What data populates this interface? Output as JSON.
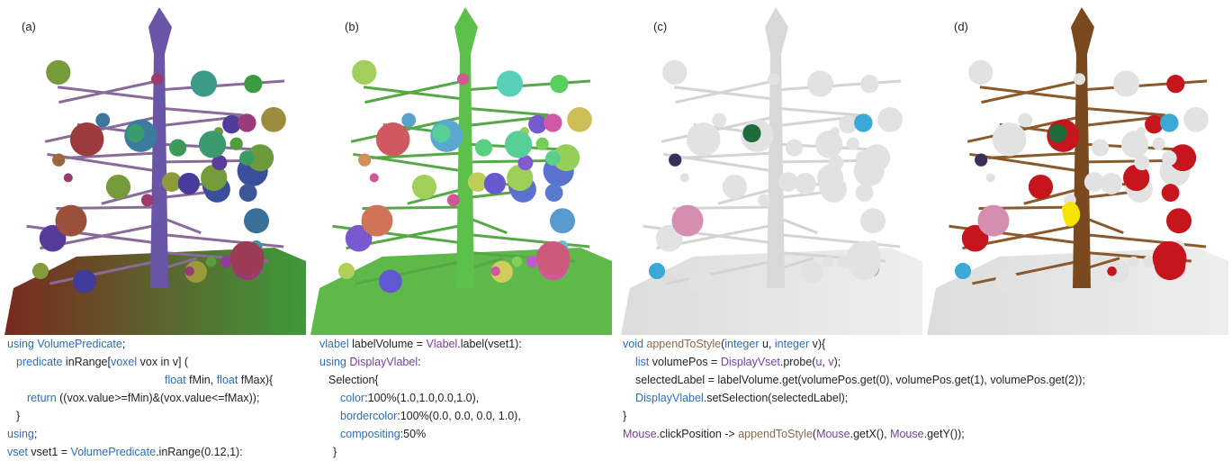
{
  "figure": {
    "panels": [
      {
        "label": "(a)",
        "code": [
          [
            {
              "text": "using VolumePredicate",
              "color": "#2e6db4"
            },
            {
              "text": ";",
              "color": "#231f20"
            }
          ],
          [
            {
              "text": "predicate",
              "color": "#2e6db4"
            },
            {
              "text": " inRange[",
              "color": "#231f20"
            },
            {
              "text": "voxel",
              "color": "#2e6db4"
            },
            {
              "text": " vox in v] (",
              "color": "#231f20"
            }
          ],
          [
            {
              "text": "float",
              "color": "#2e6db4"
            },
            {
              "text": " fMin, ",
              "color": "#231f20"
            },
            {
              "text": "float",
              "color": "#2e6db4"
            },
            {
              "text": " fMax){",
              "color": "#231f20"
            }
          ],
          [
            {
              "text": "return",
              "color": "#2e6db4"
            },
            {
              "text": " ((vox.value>=fMin)&(vox.value<=fMax));",
              "color": "#231f20"
            }
          ],
          [
            {
              "text": "}",
              "color": "#231f20"
            }
          ],
          [
            {
              "text": "using",
              "color": "#2e6db4"
            },
            {
              "text": ";",
              "color": "#231f20"
            }
          ],
          [
            {
              "text": "vset",
              "color": "#2e6db4"
            },
            {
              "text": " vset1 = ",
              "color": "#231f20"
            },
            {
              "text": "VolumePredicate",
              "color": "#2e6db4"
            },
            {
              "text": ".inRange(0.12,1):",
              "color": "#231f20"
            }
          ]
        ]
      },
      {
        "label": "(b)",
        "code": [
          [
            {
              "text": "vlabel",
              "color": "#2e6db4"
            },
            {
              "text": " labelVolume = ",
              "color": "#231f20"
            },
            {
              "text": "Vlabel",
              "color": "#7a3f9d"
            },
            {
              "text": ".label(vset1):",
              "color": "#231f20"
            }
          ],
          [
            {
              "text": "using ",
              "color": "#2e6db4"
            },
            {
              "text": "DisplayVlabel",
              "color": "#7a3f9d"
            },
            {
              "text": ":",
              "color": "#231f20"
            }
          ],
          [
            {
              "text": "Selection{",
              "color": "#231f20"
            }
          ],
          [
            {
              "text": "color",
              "color": "#2e6db4"
            },
            {
              "text": ":100%(1.0,1.0,0.0,1.0),",
              "color": "#231f20"
            }
          ],
          [
            {
              "text": "bordercolor",
              "color": "#2e6db4"
            },
            {
              "text": ":100%(0.0, 0.0, 0.0, 1.0),",
              "color": "#231f20"
            }
          ],
          [
            {
              "text": "compositing",
              "color": "#2e6db4"
            },
            {
              "text": ":50%",
              "color": "#231f20"
            }
          ],
          [
            {
              "text": "}",
              "color": "#231f20"
            }
          ]
        ]
      },
      {
        "label": "(c)"
      },
      {
        "label": "(d)"
      }
    ],
    "shared_code": [
      [
        {
          "text": "void ",
          "color": "#2e6db4"
        },
        {
          "text": "appendToStyle",
          "color": "#8a6a4a"
        },
        {
          "text": "(",
          "color": "#231f20"
        },
        {
          "text": "integer",
          "color": "#2e6db4"
        },
        {
          "text": " u, ",
          "color": "#231f20"
        },
        {
          "text": "integer",
          "color": "#2e6db4"
        },
        {
          "text": " v){",
          "color": "#231f20"
        }
      ],
      [
        {
          "text": "list",
          "color": "#2e6db4"
        },
        {
          "text": " volumePos = ",
          "color": "#231f20"
        },
        {
          "text": "DisplayVset",
          "color": "#7a3f9d"
        },
        {
          "text": ".probe(",
          "color": "#231f20"
        },
        {
          "text": "u",
          "color": "#7a3f9d"
        },
        {
          "text": ", ",
          "color": "#231f20"
        },
        {
          "text": "v",
          "color": "#7a3f9d"
        },
        {
          "text": ");",
          "color": "#231f20"
        }
      ],
      [
        {
          "text": "selectedLabel = labelVolume.get(volumePos.get(0), volumePos.get(1), volumePos.get(2));",
          "color": "#231f20"
        }
      ],
      [
        {
          "text": "DisplayVlabel",
          "color": "#2e6db4"
        },
        {
          "text": ".setSelection(selectedLabel);",
          "color": "#231f20"
        }
      ],
      [
        {
          "text": "}",
          "color": "#231f20"
        }
      ],
      [
        {
          "text": "Mouse",
          "color": "#7a3f9d"
        },
        {
          "text": ".clickPosition -> ",
          "color": "#231f20"
        },
        {
          "text": "appendToStyle",
          "color": "#8a6a4a"
        },
        {
          "text": "(",
          "color": "#231f20"
        },
        {
          "text": "Mouse",
          "color": "#7a3f9d"
        },
        {
          "text": ".getX(), ",
          "color": "#231f20"
        },
        {
          "text": "Mouse",
          "color": "#7a3f9d"
        },
        {
          "text": ".getY());",
          "color": "#231f20"
        }
      ]
    ]
  }
}
